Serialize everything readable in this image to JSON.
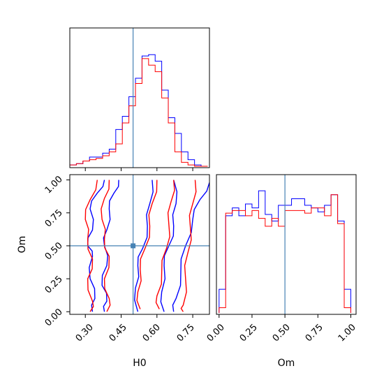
{
  "chart_data": [
    {
      "type": "histogram",
      "panel": "H0 marginal",
      "x_range": [
        0.235,
        0.82
      ],
      "truth_line_x": 0.5,
      "bin_edges": [
        0.235,
        0.2625,
        0.29,
        0.3175,
        0.345,
        0.3725,
        0.4,
        0.4275,
        0.455,
        0.4825,
        0.51,
        0.5375,
        0.565,
        0.5925,
        0.62,
        0.6475,
        0.675,
        0.7025,
        0.73,
        0.7575,
        0.785,
        0.8125
      ],
      "series": [
        {
          "name": "",
          "color": "#0000ff",
          "values": [
            0.01,
            0.02,
            0.04,
            0.07,
            0.07,
            0.1,
            0.13,
            0.28,
            0.38,
            0.53,
            0.67,
            0.84,
            0.85,
            0.8,
            0.58,
            0.37,
            0.25,
            0.11,
            0.05,
            0.01,
            0.0
          ]
        },
        {
          "name": "",
          "color": "#ff0000",
          "values": [
            0.01,
            0.02,
            0.04,
            0.05,
            0.06,
            0.08,
            0.11,
            0.17,
            0.33,
            0.46,
            0.63,
            0.82,
            0.77,
            0.72,
            0.52,
            0.33,
            0.11,
            0.03,
            0.01,
            0.0,
            0.0
          ]
        }
      ],
      "xtick_values": [
        0.3,
        0.45,
        0.6,
        0.75
      ]
    },
    {
      "type": "contour",
      "panel": "H0 vs Om",
      "xlabel": "H0",
      "ylabel": "Om",
      "xlim": [
        0.235,
        0.82
      ],
      "ylim": [
        -0.02,
        1.04
      ],
      "xtick_labels": [
        "0.30",
        "0.45",
        "0.60",
        "0.75"
      ],
      "ytick_labels": [
        "0.00",
        "0.25",
        "0.50",
        "0.75",
        "1.00"
      ],
      "truth": {
        "H0": 0.5,
        "Om": 0.5
      },
      "series": [
        {
          "name": "",
          "color": "#0000ff",
          "contours": [
            [
              [
                0.38,
                1.0
              ],
              [
                0.35,
                0.9
              ],
              [
                0.32,
                0.78
              ],
              [
                0.33,
                0.62
              ],
              [
                0.31,
                0.5
              ],
              [
                0.33,
                0.42
              ],
              [
                0.32,
                0.25
              ],
              [
                0.34,
                0.1
              ],
              [
                0.33,
                0.0
              ]
            ],
            [
              [
                0.44,
                1.0
              ],
              [
                0.42,
                0.9
              ],
              [
                0.4,
                0.78
              ],
              [
                0.39,
                0.62
              ],
              [
                0.38,
                0.5
              ],
              [
                0.39,
                0.35
              ],
              [
                0.37,
                0.2
              ],
              [
                0.39,
                0.08
              ],
              [
                0.38,
                0.0
              ]
            ],
            [
              [
                0.58,
                1.0
              ],
              [
                0.57,
                0.82
              ],
              [
                0.56,
                0.65
              ],
              [
                0.54,
                0.48
              ],
              [
                0.52,
                0.35
              ],
              [
                0.51,
                0.18
              ],
              [
                0.52,
                0.0
              ]
            ],
            [
              [
                0.67,
                1.0
              ],
              [
                0.68,
                0.82
              ],
              [
                0.67,
                0.65
              ],
              [
                0.65,
                0.5
              ],
              [
                0.63,
                0.35
              ],
              [
                0.62,
                0.15
              ],
              [
                0.63,
                0.0
              ]
            ],
            [
              [
                0.82,
                0.98
              ],
              [
                0.78,
                0.85
              ],
              [
                0.75,
                0.7
              ],
              [
                0.72,
                0.5
              ],
              [
                0.7,
                0.3
              ],
              [
                0.68,
                0.1
              ],
              [
                0.67,
                0.0
              ]
            ]
          ]
        },
        {
          "name": "",
          "color": "#ff0000",
          "contours": [
            [
              [
                0.35,
                1.0
              ],
              [
                0.32,
                0.85
              ],
              [
                0.3,
                0.7
              ],
              [
                0.31,
                0.55
              ],
              [
                0.33,
                0.4
              ],
              [
                0.31,
                0.25
              ],
              [
                0.33,
                0.08
              ],
              [
                0.32,
                0.0
              ]
            ],
            [
              [
                0.4,
                1.0
              ],
              [
                0.38,
                0.86
              ],
              [
                0.37,
                0.7
              ],
              [
                0.38,
                0.55
              ],
              [
                0.4,
                0.42
              ],
              [
                0.38,
                0.25
              ],
              [
                0.4,
                0.1
              ],
              [
                0.39,
                0.0
              ]
            ],
            [
              [
                0.6,
                1.0
              ],
              [
                0.58,
                0.82
              ],
              [
                0.57,
                0.65
              ],
              [
                0.55,
                0.48
              ],
              [
                0.53,
                0.32
              ],
              [
                0.52,
                0.15
              ],
              [
                0.53,
                0.02
              ]
            ],
            [
              [
                0.67,
                1.0
              ],
              [
                0.66,
                0.84
              ],
              [
                0.65,
                0.66
              ],
              [
                0.64,
                0.48
              ],
              [
                0.62,
                0.3
              ],
              [
                0.6,
                0.12
              ],
              [
                0.61,
                0.02
              ]
            ],
            [
              [
                0.76,
                1.0
              ],
              [
                0.75,
                0.82
              ],
              [
                0.74,
                0.64
              ],
              [
                0.73,
                0.45
              ],
              [
                0.72,
                0.25
              ],
              [
                0.71,
                0.05
              ],
              [
                0.71,
                0.0
              ]
            ]
          ]
        }
      ]
    },
    {
      "type": "histogram",
      "panel": "Om marginal",
      "xlabel": "Om",
      "x_range": [
        -0.02,
        1.04
      ],
      "truth_line_x": 0.5,
      "bin_edges": [
        0.0,
        0.05,
        0.1,
        0.15,
        0.2,
        0.25,
        0.3,
        0.35,
        0.4,
        0.45,
        0.5,
        0.55,
        0.6,
        0.65,
        0.7,
        0.75,
        0.8,
        0.85,
        0.9,
        0.95,
        1.0
      ],
      "xtick_labels": [
        "0.00",
        "0.25",
        "0.50",
        "0.75",
        "1.00"
      ],
      "series": [
        {
          "name": "",
          "color": "#0000ff",
          "values": [
            0.18,
            0.74,
            0.8,
            0.74,
            0.83,
            0.8,
            0.93,
            0.75,
            0.7,
            0.82,
            0.82,
            0.87,
            0.87,
            0.82,
            0.8,
            0.77,
            0.82,
            0.9,
            0.7,
            0.18
          ]
        },
        {
          "name": "",
          "color": "#ff0000",
          "values": [
            0.04,
            0.76,
            0.78,
            0.78,
            0.74,
            0.78,
            0.72,
            0.66,
            0.72,
            0.66,
            0.78,
            0.78,
            0.78,
            0.76,
            0.8,
            0.8,
            0.74,
            0.9,
            0.68,
            0.04
          ]
        }
      ]
    }
  ]
}
